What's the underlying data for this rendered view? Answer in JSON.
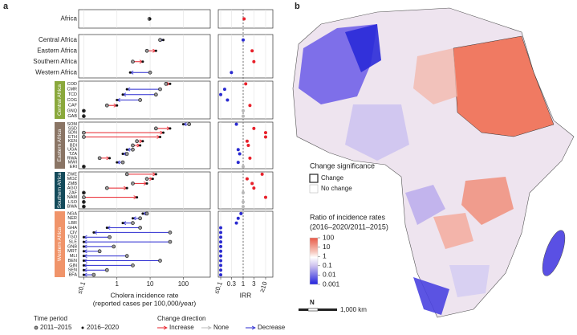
{
  "panel_labels": [
    "a",
    "b"
  ],
  "chart_data": [
    {
      "type": "dumbbell",
      "xlabel": [
        "Cholera incidence rate",
        "(reported cases per 100,000/year)"
      ],
      "xlog": true,
      "xlim": [
        0.07,
        650
      ],
      "xticks": [
        {
          "value": 0.1,
          "label": "≤0.1"
        },
        1,
        10,
        100
      ],
      "grid": true,
      "panels": [
        {
          "categories": [
            "Africa"
          ],
          "before": [
            9.5
          ],
          "after": [
            10
          ],
          "colors": [
            "#e8202a"
          ]
        },
        {
          "categories": [
            "Central Africa",
            "Eastern Africa",
            "Southern Africa",
            "Western Africa"
          ],
          "before": [
            20,
            8,
            3,
            10
          ],
          "after": [
            25,
            15,
            6,
            2.5
          ],
          "colors": [
            "#2a2ad0",
            "#e8202a",
            "#e8202a",
            "#2a2ad0"
          ]
        },
        {
          "label": "Central Africa",
          "label_color": "#8aa83c",
          "categories": [
            "COD",
            "CMR",
            "TCD",
            "COG",
            "CAF",
            "GNQ",
            "GAB"
          ],
          "before": [
            30,
            20,
            15,
            5,
            0.5,
            0.1,
            0.1
          ],
          "after": [
            40,
            2,
            1.5,
            1,
            1,
            0.1,
            0.1
          ],
          "colors": [
            "#e8202a",
            "#2a2ad0",
            "#2a2ad0",
            "#2a2ad0",
            "#e8202a",
            "#b8b8b8",
            "#b8b8b8"
          ]
        },
        {
          "label": "Eastern Africa",
          "label_color": "#8a7565",
          "categories": [
            "SOM",
            "SSD",
            "SDN",
            "ETH",
            "KEN",
            "BDI",
            "UGA",
            "TZA",
            "RWA",
            "MWI",
            "ERI"
          ],
          "before": [
            150,
            15,
            0.1,
            0.1,
            4,
            3,
            3,
            2,
            0.3,
            1.5,
            0.1
          ],
          "after": [
            100,
            40,
            25,
            20,
            6,
            5,
            2,
            1.5,
            0.6,
            1,
            0.1
          ],
          "colors": [
            "#2a2ad0",
            "#e8202a",
            "#e8202a",
            "#e8202a",
            "#e8202a",
            "#e8202a",
            "#2a2ad0",
            "#2a2ad0",
            "#e8202a",
            "#2a2ad0",
            "#b8b8b8"
          ]
        },
        {
          "label": "Southern Africa",
          "label_color": "#134a5a",
          "categories": [
            "ZWE",
            "MOZ",
            "ZMB",
            "AGO",
            "ZAF",
            "NAM",
            "LSO",
            "BWA"
          ],
          "before": [
            2,
            8,
            3,
            0.5,
            0.1,
            0.1,
            0.1,
            0.1
          ],
          "after": [
            15,
            12,
            8,
            2,
            0.1,
            4,
            0.1,
            0.1
          ],
          "colors": [
            "#e8202a",
            "#e8202a",
            "#e8202a",
            "#e8202a",
            "#b8b8b8",
            "#e8202a",
            "#b8b8b8",
            "#b8b8b8"
          ]
        },
        {
          "label": "Western Africa",
          "label_color": "#f0946a",
          "categories": [
            "NGA",
            "NER",
            "LBR",
            "GHA",
            "CIV",
            "TGO",
            "SLE",
            "GNB",
            "MRT",
            "MLI",
            "BEN",
            "GIN",
            "SEN",
            "BFA"
          ],
          "before": [
            8,
            5,
            3,
            5,
            40,
            0.6,
            40,
            0.8,
            0.3,
            2,
            20,
            3,
            0.5,
            0.2
          ],
          "after": [
            6,
            3,
            1.5,
            0.5,
            0.2,
            0.1,
            0.1,
            0.1,
            0.1,
            0.1,
            0.1,
            0.1,
            0.1,
            0.1
          ],
          "colors": [
            "#2a2ad0",
            "#2a2ad0",
            "#2a2ad0",
            "#2a2ad0",
            "#2a2ad0",
            "#2a2ad0",
            "#2a2ad0",
            "#2a2ad0",
            "#2a2ad0",
            "#2a2ad0",
            "#2a2ad0",
            "#2a2ad0",
            "#2a2ad0",
            "#2a2ad0"
          ]
        }
      ]
    },
    {
      "type": "dot",
      "xlabel": "IRR",
      "xlog": true,
      "xlim": [
        0.078,
        21
      ],
      "xticks": [
        {
          "value": 0.1,
          "label": "≤0.1"
        },
        0.3,
        1,
        3,
        {
          "value": 10,
          "label": "≥10"
        }
      ],
      "grid": true,
      "reference_line": 1,
      "panels": [
        {
          "values": [
            1.1
          ],
          "colors": [
            "#e8202a"
          ]
        },
        {
          "values": [
            1,
            2.5,
            3,
            0.3
          ],
          "colors": [
            "#2a2ad0",
            "#e8202a",
            "#e8202a",
            "#2a2ad0"
          ]
        },
        {
          "values": [
            1.3,
            0.15,
            0.1,
            0.2,
            2,
            1,
            1
          ],
          "colors": [
            "#e8202a",
            "#2a2ad0",
            "#2a2ad0",
            "#2a2ad0",
            "#e8202a",
            "#b8b8b8",
            "#b8b8b8"
          ]
        },
        {
          "values": [
            0.5,
            3,
            10,
            10,
            1.5,
            1.7,
            0.6,
            0.7,
            2,
            0.6,
            1
          ],
          "colors": [
            "#2a2ad0",
            "#e8202a",
            "#e8202a",
            "#e8202a",
            "#e8202a",
            "#e8202a",
            "#2a2ad0",
            "#2a2ad0",
            "#e8202a",
            "#2a2ad0",
            "#b8b8b8"
          ]
        },
        {
          "values": [
            7,
            1.5,
            2.5,
            3,
            1,
            10,
            1,
            1
          ],
          "colors": [
            "#e8202a",
            "#e8202a",
            "#e8202a",
            "#e8202a",
            "#b8b8b8",
            "#e8202a",
            "#b8b8b8",
            "#b8b8b8"
          ]
        },
        {
          "values": [
            0.8,
            0.6,
            0.5,
            0.1,
            0.1,
            0.1,
            0.1,
            0.1,
            0.1,
            0.1,
            0.1,
            0.1,
            0.1,
            0.1
          ],
          "colors": [
            "#2a2ad0",
            "#2a2ad0",
            "#2a2ad0",
            "#2a2ad0",
            "#2a2ad0",
            "#2a2ad0",
            "#2a2ad0",
            "#2a2ad0",
            "#2a2ad0",
            "#2a2ad0",
            "#2a2ad0",
            "#2a2ad0",
            "#2a2ad0",
            "#2a2ad0"
          ]
        }
      ]
    }
  ],
  "legend": {
    "time_title": "Time period",
    "time": [
      "2011–2015",
      "2016–2020"
    ],
    "direction_title": "Change direction",
    "direction": [
      {
        "name": "Increase",
        "color": "#e8202a"
      },
      {
        "name": "None",
        "color": "#b8b8b8"
      },
      {
        "name": "Decrease",
        "color": "#2a2ad0"
      }
    ]
  },
  "map": {
    "significance_title": "Change significance",
    "significance": [
      "Change",
      "No change"
    ],
    "colorbar": {
      "title": [
        "Ratio of incidence rates",
        "(2016–2020/2011–2015)"
      ],
      "log": true,
      "lim": [
        0.001,
        100
      ],
      "ticks": [
        100,
        10,
        1,
        0.1,
        0.01,
        0.001
      ]
    },
    "north": "N",
    "scale_label": "1,000 km"
  }
}
